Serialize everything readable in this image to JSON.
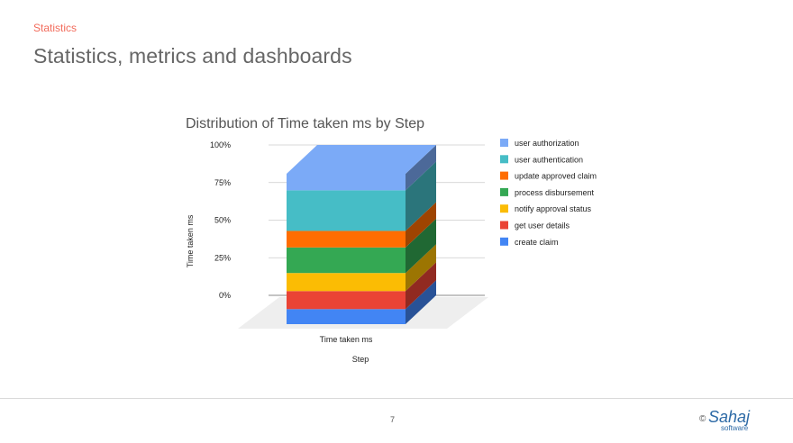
{
  "slide": {
    "kicker": "Statistics",
    "title": "Statistics, metrics and dashboards",
    "page_number": "7",
    "logo": {
      "copyright": "©",
      "brand": "Sahaj",
      "sub": "software"
    }
  },
  "chart_data": {
    "type": "bar",
    "subtype": "3d-stacked-100-percent",
    "title": "Distribution of Time taken ms by Step",
    "xlabel": "Step",
    "ylabel": "Time taken ms",
    "categories": [
      "Time taken ms"
    ],
    "yticks": [
      "100%",
      "75%",
      "50%",
      "25%",
      "0%"
    ],
    "ylim": [
      0,
      100
    ],
    "legend_position": "right",
    "series": [
      {
        "name": "create claim",
        "color": "#4285f4",
        "values": [
          10
        ]
      },
      {
        "name": "get user details",
        "color": "#ea4335",
        "values": [
          12
        ]
      },
      {
        "name": "notify approval status",
        "color": "#fbbc04",
        "values": [
          12
        ]
      },
      {
        "name": "process disbursement",
        "color": "#34a853",
        "values": [
          17
        ]
      },
      {
        "name": "update approved claim",
        "color": "#ff6d01",
        "values": [
          11
        ]
      },
      {
        "name": "user authentication",
        "color": "#46bdc6",
        "values": [
          27
        ]
      },
      {
        "name": "user authorization",
        "color": "#7baaf7",
        "values": [
          11
        ]
      }
    ]
  }
}
